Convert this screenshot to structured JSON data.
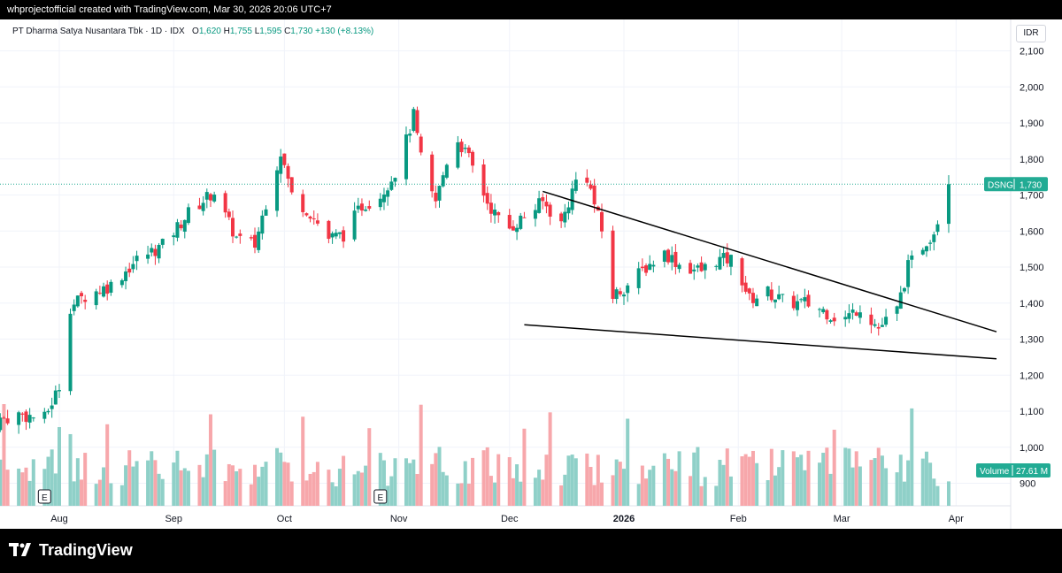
{
  "header": {
    "text": "whprojectofficial created with TradingView.com, Mar 30, 2026 20:06 UTC+7"
  },
  "legend": {
    "title": "PT Dharma Satya Nusantara Tbk · 1D · IDX",
    "o_label": "O",
    "o": "1,620",
    "h_label": "H",
    "h": "1,755",
    "l_label": "L",
    "l": "1,595",
    "c_label": "C",
    "c": "1,730",
    "change": "+130 (+8.13%)"
  },
  "currency": "IDR",
  "price_tag": {
    "symbol": "DSNG",
    "value": "1,730"
  },
  "volume_tag": {
    "label": "Volume",
    "value": "27.61 M"
  },
  "footer": {
    "brand": "TradingView"
  },
  "colors": {
    "up": "#089981",
    "down": "#f23645",
    "vol_up": "#8fd0c8",
    "vol_down": "#f7a7ab",
    "accent": "#22ab94"
  },
  "chart_data": {
    "type": "candlestick",
    "y_axis_ticks": [
      "2,100",
      "2,000",
      "1,900",
      "1,800",
      "1,700",
      "1,600",
      "1,500",
      "1,400",
      "1,300",
      "1,200",
      "1,100",
      "1,000",
      "900"
    ],
    "y_tick_values": [
      2100,
      2000,
      1900,
      1800,
      1700,
      1600,
      1500,
      1400,
      1300,
      1200,
      1100,
      1000,
      900
    ],
    "x_axis_labels": [
      "Aug",
      "Sep",
      "Oct",
      "Nov",
      "Dec",
      "2026",
      "Feb",
      "Mar",
      "Apr"
    ],
    "x_label_dates": [
      "2025-08-01",
      "2025-09-01",
      "2025-10-01",
      "2025-11-01",
      "2025-12-01",
      "2026-01-01",
      "2026-02-01",
      "2026-03-01",
      "2026-04-01"
    ],
    "dividend_markers": [
      {
        "label": "E",
        "date": "2025-07-28"
      },
      {
        "label": "E",
        "date": "2025-10-27"
      }
    ],
    "last_price": 1730,
    "last_volume": "27.61 M",
    "trendlines": [
      {
        "name": "upper",
        "from": {
          "date": "2025-12-10",
          "price": 1710
        },
        "to": {
          "date": "2026-03-30",
          "price": 1340
        }
      },
      {
        "name": "lower",
        "from": {
          "date": "2025-12-05",
          "price": 1340
        },
        "to": {
          "date": "2026-03-30",
          "price": 1265
        }
      }
    ],
    "anchors": [
      [
        "2025-07-14",
        1070
      ],
      [
        "2025-07-21",
        1090
      ],
      [
        "2025-07-28",
        1080
      ],
      [
        "2025-08-01",
        1170
      ],
      [
        "2025-08-04",
        1390
      ],
      [
        "2025-08-08",
        1420
      ],
      [
        "2025-08-15",
        1450
      ],
      [
        "2025-08-22",
        1520
      ],
      [
        "2025-08-29",
        1560
      ],
      [
        "2025-09-05",
        1650
      ],
      [
        "2025-09-12",
        1710
      ],
      [
        "2025-09-15",
        1640
      ],
      [
        "2025-09-18",
        1580
      ],
      [
        "2025-09-23",
        1560
      ],
      [
        "2025-09-26",
        1680
      ],
      [
        "2025-09-30",
        1820
      ],
      [
        "2025-10-03",
        1700
      ],
      [
        "2025-10-08",
        1650
      ],
      [
        "2025-10-13",
        1580
      ],
      [
        "2025-10-17",
        1590
      ],
      [
        "2025-10-22",
        1670
      ],
      [
        "2025-10-27",
        1700
      ],
      [
        "2025-11-01",
        1780
      ],
      [
        "2025-11-05",
        1920
      ],
      [
        "2025-11-08",
        1740
      ],
      [
        "2025-11-11",
        1680
      ],
      [
        "2025-11-16",
        1870
      ],
      [
        "2025-11-20",
        1800
      ],
      [
        "2025-11-25",
        1680
      ],
      [
        "2025-11-30",
        1600
      ],
      [
        "2025-12-05",
        1640
      ],
      [
        "2025-12-10",
        1680
      ],
      [
        "2025-12-15",
        1620
      ],
      [
        "2025-12-19",
        1740
      ],
      [
        "2025-12-22",
        1750
      ],
      [
        "2025-12-26",
        1600
      ],
      [
        "2025-12-29",
        1420
      ],
      [
        "2026-01-02",
        1450
      ],
      [
        "2026-01-07",
        1500
      ],
      [
        "2026-01-12",
        1540
      ],
      [
        "2026-01-17",
        1500
      ],
      [
        "2026-01-22",
        1490
      ],
      [
        "2026-01-26",
        1520
      ],
      [
        "2026-01-31",
        1520
      ],
      [
        "2026-02-04",
        1410
      ],
      [
        "2026-02-09",
        1430
      ],
      [
        "2026-02-14",
        1400
      ],
      [
        "2026-02-19",
        1400
      ],
      [
        "2026-02-24",
        1380
      ],
      [
        "2026-03-01",
        1350
      ],
      [
        "2026-03-06",
        1390
      ],
      [
        "2026-03-11",
        1330
      ],
      [
        "2026-03-16",
        1380
      ],
      [
        "2026-03-19",
        1500
      ],
      [
        "2026-03-23",
        1560
      ],
      [
        "2026-03-26",
        1600
      ],
      [
        "2026-03-30",
        1730
      ]
    ],
    "volume_range": [
      0,
      120
    ]
  }
}
